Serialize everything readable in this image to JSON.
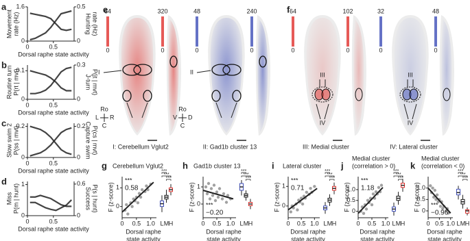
{
  "line_panels": [
    {
      "letter": "a",
      "left_label": [
        "Movement",
        "rate (Hz)"
      ],
      "right_label": [
        "Hunting",
        "rate (Hz)"
      ],
      "left_color": "#4a62ad",
      "right_color": "#e0312d",
      "xlim": [
        0,
        0.9
      ],
      "xticks": [
        0,
        0.5
      ],
      "ylim": [
        0,
        1.6
      ],
      "yticks": [
        0,
        1.6
      ],
      "y2lim": [
        0,
        0.5
      ],
      "y2ticks": [
        0,
        0.5
      ],
      "x": [
        0.05,
        0.15,
        0.25,
        0.35,
        0.45,
        0.55,
        0.65,
        0.75,
        0.85
      ],
      "left_values": [
        1.3,
        1.25,
        1.2,
        1.15,
        1.05,
        0.8,
        0.55,
        0.5,
        0.55
      ],
      "right_values": [
        0.02,
        0.04,
        0.08,
        0.12,
        0.2,
        0.3,
        0.4,
        0.42,
        0.44
      ],
      "xlabel": "Dorsal raphe state activity"
    },
    {
      "letter": "b",
      "left_label": [
        "Routine turn",
        "P(rt | mvt)"
      ],
      "right_label": [
        "J-turn",
        "P(jt | mvt)"
      ],
      "left_color": "#4a62ad",
      "right_color": "#e0312d",
      "xlim": [
        0,
        0.9
      ],
      "xticks": [
        0,
        0.5
      ],
      "ylim": [
        0,
        0.12
      ],
      "yticks": [
        0,
        0.1
      ],
      "y2lim": [
        0,
        0.3
      ],
      "y2ticks": [
        0,
        0.3
      ],
      "x": [
        0.05,
        0.15,
        0.25,
        0.35,
        0.45,
        0.55,
        0.65,
        0.75,
        0.85
      ],
      "left_values": [
        0.1,
        0.095,
        0.09,
        0.085,
        0.075,
        0.06,
        0.04,
        0.03,
        0.03
      ],
      "right_values": [
        0.05,
        0.05,
        0.06,
        0.08,
        0.12,
        0.18,
        0.24,
        0.27,
        0.28
      ],
      "xlabel": "Dorsal raphe state activity"
    },
    {
      "letter": "c",
      "left_label": [
        "Slow swim 2",
        "P(ss | mvt)"
      ],
      "right_label": [
        "Capture swim",
        "P(cs | mvt)"
      ],
      "left_color": "#4a62ad",
      "right_color": "#e0312d",
      "xlim": [
        0,
        0.9
      ],
      "xticks": [
        0,
        0.5
      ],
      "ylim": [
        0,
        0.22
      ],
      "yticks": [
        0,
        0.2
      ],
      "y2lim": [
        0,
        0.22
      ],
      "y2ticks": [
        0,
        0.2
      ],
      "x": [
        0.05,
        0.15,
        0.25,
        0.35,
        0.45,
        0.55,
        0.65,
        0.75,
        0.85
      ],
      "left_values": [
        0.2,
        0.19,
        0.18,
        0.16,
        0.13,
        0.09,
        0.05,
        0.03,
        0.02
      ],
      "right_values": [
        0.01,
        0.02,
        0.03,
        0.05,
        0.08,
        0.12,
        0.16,
        0.18,
        0.19
      ],
      "xlabel": "Dorsal raphe state activity"
    },
    {
      "letter": "d",
      "left_label": [
        "Miss",
        "P(m | hunt)"
      ],
      "right_label": [
        "Success",
        "P(s | hunt)"
      ],
      "left_color": "#4a62ad",
      "right_color": "#e0312d",
      "xlim": [
        0,
        0.9
      ],
      "xticks": [
        0,
        0.5
      ],
      "ylim": [
        0,
        1.1
      ],
      "yticks": [
        0,
        1
      ],
      "y2lim": [
        0,
        0.65
      ],
      "y2ticks": [
        0,
        0.6
      ],
      "x": [
        0.05,
        0.15,
        0.25,
        0.35,
        0.45,
        0.55,
        0.65,
        0.75,
        0.85
      ],
      "left_values": [
        0.6,
        0.6,
        0.65,
        0.6,
        0.55,
        0.45,
        0.35,
        0.3,
        0.3
      ],
      "right_values": [
        0.25,
        0.25,
        0.2,
        0.15,
        0.12,
        0.1,
        0.15,
        0.2,
        0.3
      ],
      "xlabel": "Dorsal raphe state activity"
    }
  ],
  "map_letters": [
    "e",
    "f"
  ],
  "maps": [
    {
      "caption": "I: Cerebellum Vglut2",
      "color": "#e0312d",
      "scale_max": 64,
      "scale_min": 0,
      "side_max": 320,
      "side_min": 0,
      "roman": "I"
    },
    {
      "caption": "II: Gad1b cluster 13",
      "color": "#3f4fb8",
      "scale_max": 48,
      "scale_min": 0,
      "side_max": 240,
      "side_min": 0,
      "roman": "II"
    },
    {
      "caption": "III: Medial cluster",
      "color": "#e0312d",
      "scale_max": 64,
      "scale_min": 0,
      "side_max": 102,
      "side_min": 0,
      "roman": "III",
      "roman2": "IV"
    },
    {
      "caption": "IV: Lateral cluster",
      "color": "#3f4fb8",
      "scale_max": 32,
      "scale_min": 0,
      "side_max": 48,
      "side_min": 0,
      "roman": "III",
      "roman2": "IV"
    }
  ],
  "orientation": {
    "dorsal": [
      "Ro",
      "L",
      "R",
      "C"
    ],
    "side": [
      "Ro",
      "V",
      "D",
      "C"
    ]
  },
  "scatter_panels": [
    {
      "letter": "g",
      "title": [
        "Cerebellum Vglut2"
      ],
      "ylabel": "F (z-score)",
      "r": "0.58",
      "r_color": "#e0312d",
      "annot_pos": "top",
      "stars": "***",
      "box_stars": [
        "***",
        "***",
        "***"
      ],
      "xlim": [
        0,
        1.2
      ],
      "xticks": [
        0,
        0.5,
        {
          "value": 1,
          "label": "1.0"
        }
      ],
      "ylim": [
        -0.6,
        1.6
      ],
      "yticks": [
        0,
        1
      ],
      "fit": [
        [
          0,
          -0.3
        ],
        [
          1.1,
          1.3
        ]
      ],
      "points": [
        [
          0.1,
          -0.2
        ],
        [
          0.15,
          0.1
        ],
        [
          0.2,
          -0.4
        ],
        [
          0.3,
          0.2
        ],
        [
          0.35,
          0
        ],
        [
          0.4,
          0.4
        ],
        [
          0.45,
          0.3
        ],
        [
          0.5,
          0.5
        ],
        [
          0.55,
          0.2
        ],
        [
          0.6,
          0.7
        ],
        [
          0.65,
          0.5
        ],
        [
          0.7,
          0.9
        ],
        [
          0.8,
          0.8
        ],
        [
          0.85,
          1.1
        ],
        [
          0.9,
          0.9
        ],
        [
          1.0,
          1.2
        ]
      ],
      "box_labels": [
        "L",
        "M",
        "H"
      ],
      "boxes": [
        [
          -0.3,
          0,
          0.15,
          0.3,
          0.6
        ],
        [
          0.2,
          0.4,
          0.5,
          0.6,
          0.9
        ],
        [
          0.6,
          0.8,
          0.9,
          1.0,
          1.2
        ]
      ],
      "xlabel": [
        "Dorsal raphe",
        "state activity"
      ]
    },
    {
      "letter": "h",
      "title": [
        "Gad1b cluster 13"
      ],
      "ylabel": "F (z-score)",
      "r": "−0.20",
      "r_color": "#3f4fb8",
      "annot_pos": "bottom",
      "stars": "***",
      "box_stars": [
        "***",
        "***",
        "***"
      ],
      "xlim": [
        0,
        1.2
      ],
      "xticks": [
        0,
        0.5,
        {
          "value": 1,
          "label": "1.0"
        }
      ],
      "ylim": [
        -0.8,
        1.6
      ],
      "yticks": [
        0,
        1
      ],
      "fit": [
        [
          0,
          0.8
        ],
        [
          1.1,
          0.3
        ]
      ],
      "points": [
        [
          0.1,
          1.0
        ],
        [
          0.15,
          0.6
        ],
        [
          0.2,
          1.2
        ],
        [
          0.25,
          0.3
        ],
        [
          0.3,
          0.9
        ],
        [
          0.35,
          0.5
        ],
        [
          0.4,
          1.1
        ],
        [
          0.45,
          0.2
        ],
        [
          0.5,
          0.7
        ],
        [
          0.55,
          0.4
        ],
        [
          0.6,
          0.9
        ],
        [
          0.7,
          0.3
        ],
        [
          0.75,
          0.6
        ],
        [
          0.85,
          0.1
        ],
        [
          0.9,
          0.5
        ],
        [
          1.0,
          0.3
        ]
      ],
      "box_labels": [
        "L",
        "M",
        "H"
      ],
      "boxes": [
        [
          0.5,
          0.8,
          1.0,
          1.2,
          1.4
        ],
        [
          0.2,
          0.4,
          0.5,
          0.6,
          0.8
        ],
        [
          -0.3,
          -0.1,
          0,
          0.1,
          0.3
        ]
      ],
      "xlabel": [
        "Dorsal raphe",
        "state activity"
      ]
    },
    {
      "letter": "i",
      "title": [
        "Lateral cluster"
      ],
      "ylabel": "F (z-score)",
      "r": "0.71",
      "r_color": "#e0312d",
      "annot_pos": "top",
      "stars": "***",
      "box_stars": [
        "***",
        "***",
        "***"
      ],
      "xlim": [
        0,
        1.2
      ],
      "xticks": [
        0,
        0.5,
        {
          "value": 1,
          "label": "1.0"
        }
      ],
      "ylim": [
        -0.6,
        1.5
      ],
      "yticks": [
        0,
        1
      ],
      "fit": [
        [
          0,
          -0.2
        ],
        [
          1.1,
          0.9
        ]
      ],
      "points": [
        [
          0.1,
          -0.3
        ],
        [
          0.15,
          0
        ],
        [
          0.2,
          -0.1
        ],
        [
          0.3,
          0.1
        ],
        [
          0.35,
          -0.2
        ],
        [
          0.4,
          0.3
        ],
        [
          0.45,
          0.2
        ],
        [
          0.5,
          0.4
        ],
        [
          0.55,
          0.1
        ],
        [
          0.6,
          0.5
        ],
        [
          0.65,
          0.4
        ],
        [
          0.7,
          0.7
        ],
        [
          0.8,
          0.6
        ],
        [
          0.85,
          0.9
        ],
        [
          0.9,
          0.7
        ],
        [
          1.0,
          1.0
        ]
      ],
      "box_labels": [
        "L",
        "M",
        "H"
      ],
      "boxes": [
        [
          -0.4,
          -0.2,
          -0.1,
          0,
          0.2
        ],
        [
          0,
          0.2,
          0.3,
          0.4,
          0.6
        ],
        [
          0.6,
          0.8,
          0.9,
          1.0,
          1.2
        ]
      ],
      "xlabel": [
        "Dorsal raphe",
        "state activity"
      ]
    },
    {
      "letter": "j",
      "title": [
        "Medial cluster",
        "(correlation > 0)"
      ],
      "ylabel": "F (z-score)",
      "r": "1.18",
      "r_color": "#e0312d",
      "annot_pos": "top",
      "stars": "***",
      "box_stars": [
        "***",
        "***",
        "***"
      ],
      "xlim": [
        0,
        1.1
      ],
      "xticks": [
        0,
        0.5,
        {
          "value": 1,
          "label": "1.0"
        }
      ],
      "ylim": [
        -0.3,
        1.6
      ],
      "yticks": [
        0,
        0.5,
        {
          "value": 1,
          "label": "1.0"
        }
      ],
      "fit": [
        [
          0,
          -0.1
        ],
        [
          0.9,
          1.1
        ]
      ],
      "points": [
        [
          0.1,
          0
        ],
        [
          0.15,
          0.2
        ],
        [
          0.2,
          -0.1
        ],
        [
          0.25,
          0.3
        ],
        [
          0.3,
          0.1
        ],
        [
          0.35,
          0.5
        ],
        [
          0.4,
          0.4
        ],
        [
          0.45,
          0.6
        ],
        [
          0.5,
          0.3
        ],
        [
          0.55,
          0.8
        ],
        [
          0.6,
          0.6
        ],
        [
          0.65,
          0.9
        ],
        [
          0.7,
          0.8
        ],
        [
          0.75,
          1.1
        ],
        [
          0.8,
          0.9
        ],
        [
          0.85,
          1.2
        ]
      ],
      "box_labels": [
        "L",
        "M",
        "H"
      ],
      "boxes": [
        [
          -0.2,
          0,
          0.1,
          0.2,
          0.4
        ],
        [
          0.3,
          0.5,
          0.6,
          0.7,
          0.9
        ],
        [
          0.9,
          1.1,
          1.2,
          1.3,
          1.5
        ]
      ],
      "xlabel": [
        "Dorsal raphe",
        "state activity"
      ]
    },
    {
      "letter": "k",
      "title": [
        "Medial cluster",
        "(correlation < 0)"
      ],
      "ylabel": "F (z-score)",
      "r": "−0.96",
      "r_color": "#3f4fb8",
      "annot_pos": "bottom",
      "stars": "***",
      "box_stars": [
        "***",
        "***",
        "***"
      ],
      "xlim": [
        0,
        1.1
      ],
      "xticks": [
        0,
        0.5,
        {
          "value": 1,
          "label": "1.0"
        }
      ],
      "ylim": [
        -0.3,
        1.5
      ],
      "yticks": [
        0,
        0.5,
        {
          "value": 1,
          "label": "1.0"
        }
      ],
      "fit": [
        [
          0,
          1.0
        ],
        [
          1.0,
          -0.1
        ]
      ],
      "points": [
        [
          0.1,
          1.1
        ],
        [
          0.15,
          0.8
        ],
        [
          0.2,
          1.0
        ],
        [
          0.25,
          0.6
        ],
        [
          0.3,
          0.9
        ],
        [
          0.35,
          0.5
        ],
        [
          0.4,
          0.7
        ],
        [
          0.45,
          0.4
        ],
        [
          0.5,
          0.5
        ],
        [
          0.55,
          0.2
        ],
        [
          0.6,
          0.4
        ],
        [
          0.65,
          0.1
        ],
        [
          0.7,
          0.2
        ],
        [
          0.8,
          0
        ],
        [
          0.85,
          0.1
        ],
        [
          0.9,
          -0.1
        ]
      ],
      "box_labels": [
        "L",
        "M",
        "H"
      ],
      "boxes": [
        [
          0.5,
          0.7,
          0.8,
          0.95,
          1.1
        ],
        [
          0.1,
          0.3,
          0.4,
          0.5,
          0.7
        ],
        [
          -0.2,
          -0.1,
          0,
          0.05,
          0.15
        ]
      ],
      "xlabel": [
        "Dorsal raphe",
        "state activity"
      ]
    }
  ]
}
